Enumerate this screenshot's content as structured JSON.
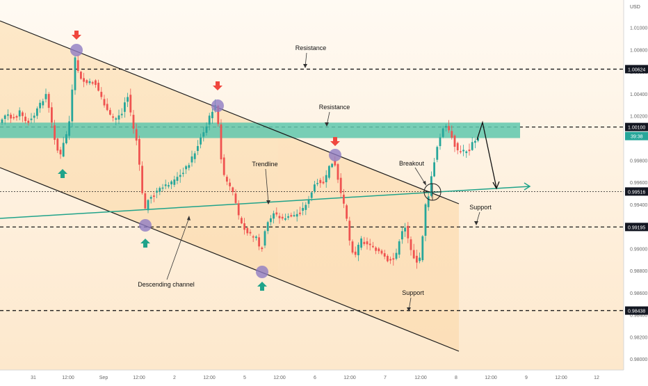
{
  "chart_data": {
    "type": "candlestick",
    "currency": "USD",
    "x_ticks": [
      "31",
      "12:00",
      "Sep",
      "12:00",
      "2",
      "12:00",
      "5",
      "12:00",
      "6",
      "12:00",
      "7",
      "12:00",
      "8",
      "12:00",
      "9",
      "12:00",
      "12"
    ],
    "y_ticks": [
      "1.01000",
      "1.00800",
      "1.00600",
      "1.00400",
      "1.00200",
      "1.00000",
      "0.99800",
      "0.99600",
      "0.99400",
      "0.99200",
      "0.99000",
      "0.98800",
      "0.98600",
      "0.98400",
      "0.98200",
      "0.98000"
    ],
    "ylim": [
      0.979,
      1.0125
    ],
    "price_labels": [
      {
        "value": 1.00624,
        "text": "1.00624"
      },
      {
        "value": 1.001,
        "text": "1.00100"
      },
      {
        "value": 0.99516,
        "text": "0.99516"
      },
      {
        "value": 0.99195,
        "text": "0.99195"
      },
      {
        "value": 0.98438,
        "text": "0.98438"
      }
    ],
    "countdown": "39:38",
    "annotations": {
      "resistance_upper": "Resistance",
      "resistance_lower": "Resistance",
      "trendline": "Trendline",
      "breakout": "Breakout",
      "support_right": "Support",
      "support_lower": "Support",
      "descending_channel": "Descending channel"
    },
    "resistance_zone": [
      1.0,
      1.0014
    ],
    "colors": {
      "up": "#26a69a",
      "down": "#ef5350",
      "zone": "#5fc7ad",
      "channel": "#fde4c3",
      "trendline": "#1fa38a",
      "marker": "#8e7cc3",
      "arrow_down": "#f0473e",
      "arrow_up": "#1fa38a"
    }
  }
}
